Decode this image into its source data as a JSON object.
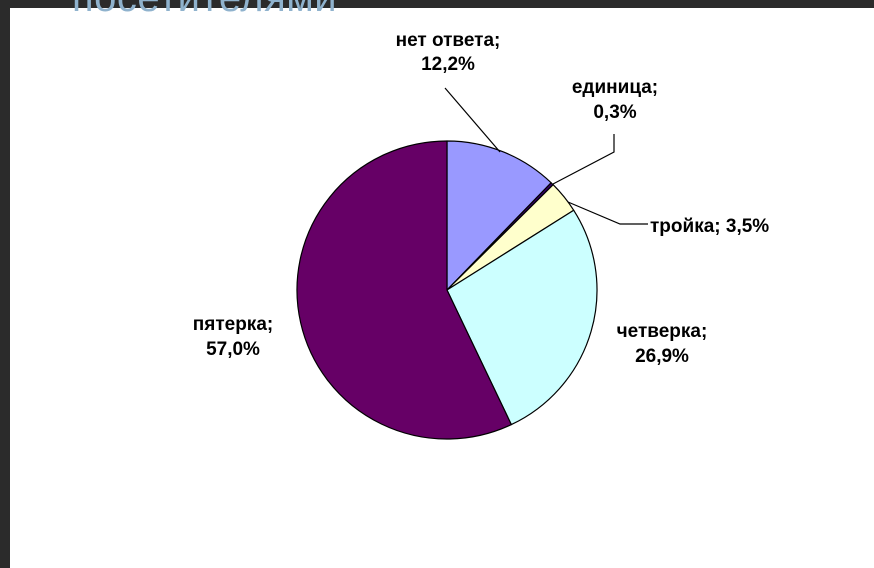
{
  "heading": "посетителями",
  "colors": {
    "background_dark": "#2b2b2b",
    "panel": "#ffffff",
    "heading_text": "#8fb2cd"
  },
  "chart_data": {
    "type": "pie",
    "title": "",
    "slices": [
      {
        "label": "нет ответа",
        "value": 12.2,
        "value_text": "12,2%",
        "color": "#9999ff"
      },
      {
        "label": "единица",
        "value": 0.3,
        "value_text": "0,3%",
        "color": "#330066"
      },
      {
        "label": "тройка",
        "value": 3.5,
        "value_text": "3,5%",
        "color": "#ffffcc"
      },
      {
        "label": "четверка",
        "value": 26.9,
        "value_text": "26,9%",
        "color": "#ccffff"
      },
      {
        "label": "пятерка",
        "value": 57.0,
        "value_text": "57,0%",
        "color": "#660066"
      }
    ],
    "label_texts": [
      [
        "нет ответа;",
        "12,2%"
      ],
      [
        "единица;",
        "0,3%"
      ],
      [
        "тройка; 3,5%"
      ],
      [
        "четверка;",
        "26,9%"
      ],
      [
        "пятерка;",
        "57,0%"
      ]
    ],
    "legend": "none"
  }
}
